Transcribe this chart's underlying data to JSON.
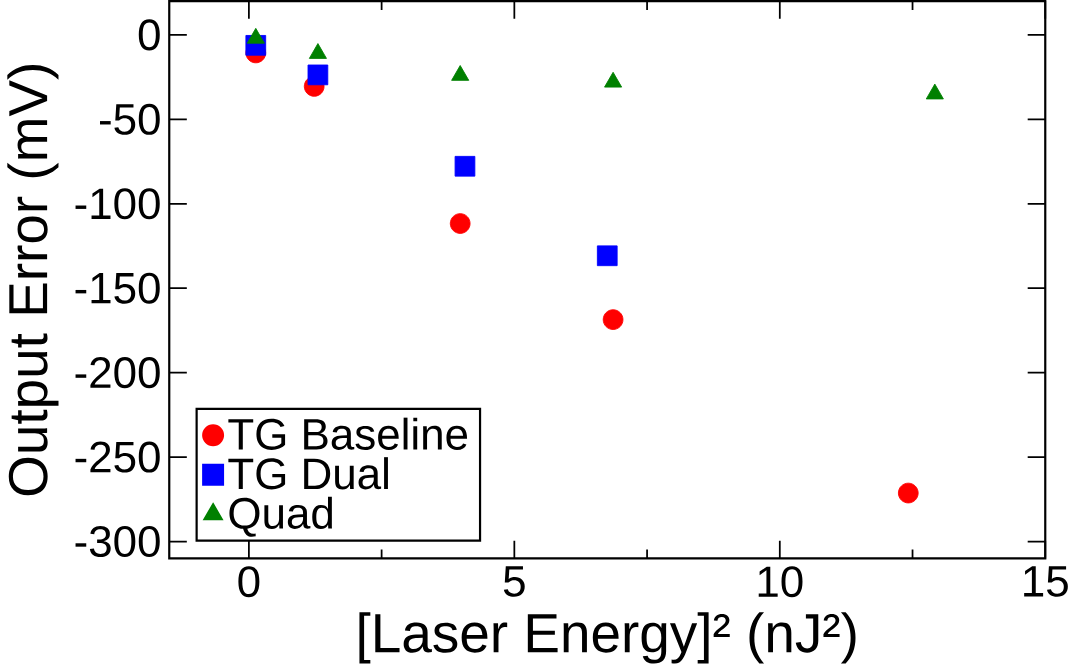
{
  "chart_data": {
    "type": "scatter",
    "xlabel": "[Laser Energy]² (nJ²)",
    "ylabel": "Output Error (mV)",
    "xlim": [
      -1.5,
      15
    ],
    "ylim": [
      -310,
      20
    ],
    "xticks": [
      0,
      5,
      10,
      15
    ],
    "yticks": [
      -300,
      -250,
      -200,
      -150,
      -100,
      -50,
      0
    ],
    "grid": false,
    "legend": "bottom left",
    "series": [
      {
        "name": "TG Baseline",
        "color": "#ff0000",
        "marker": "circle",
        "x": [
          0.13,
          1.23,
          3.98,
          6.86,
          12.42
        ],
        "values": [
          -10.7,
          -30.5,
          -111.7,
          -168.6,
          -271.3
        ]
      },
      {
        "name": "TG Dual",
        "color": "#0000ff",
        "marker": "square",
        "x": [
          0.13,
          1.3,
          4.07,
          6.75
        ],
        "values": [
          -6.2,
          -23.7,
          -77.8,
          -130.8
        ]
      },
      {
        "name": "Quad",
        "color": "#008000",
        "marker": "triangle",
        "x": [
          0.13,
          1.3,
          3.98,
          6.86,
          12.92
        ],
        "values": [
          -2,
          -11,
          -24,
          -28,
          -35
        ]
      }
    ]
  }
}
